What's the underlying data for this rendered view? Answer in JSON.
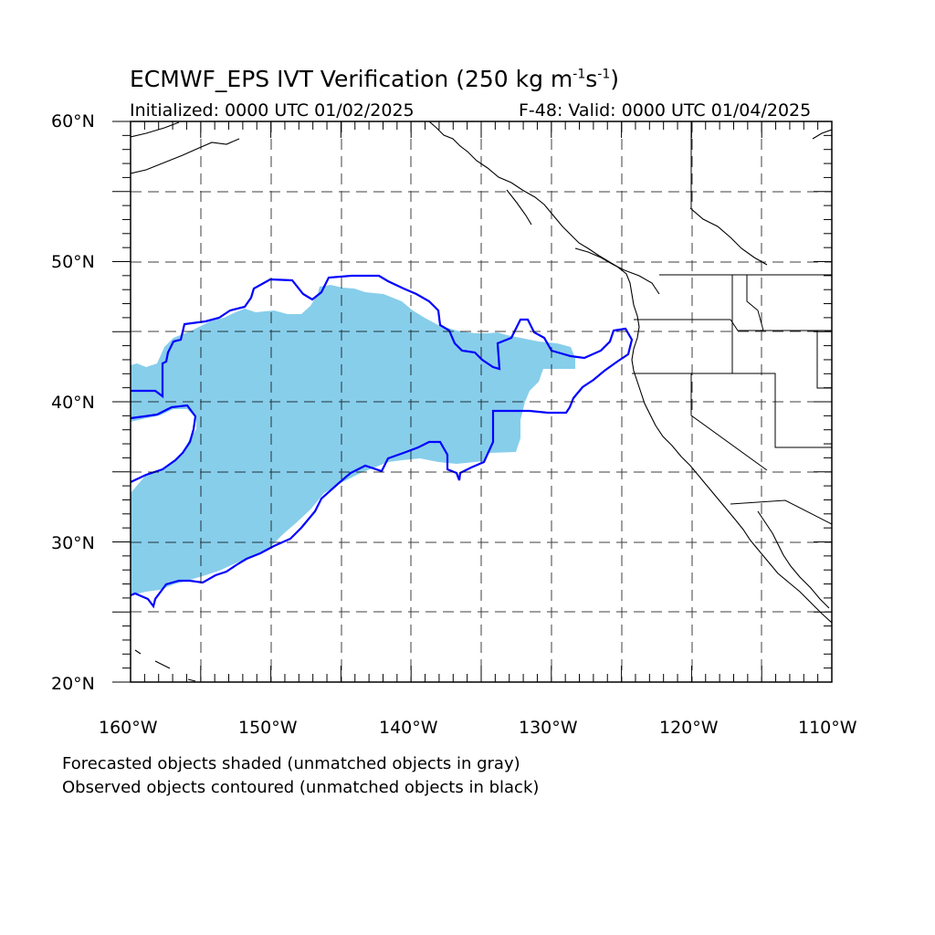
{
  "title": {
    "prefix": "ECMWF_EPS IVT Verification (250 kg m",
    "exp1": "-1",
    "mid": "s",
    "exp2": "-1",
    "suffix": ")"
  },
  "initialized": "Initialized: 0000 UTC 01/02/2025",
  "valid": "F-48: Valid: 0000 UTC 01/04/2025",
  "lat_labels": [
    "60°N",
    "50°N",
    "40°N",
    "30°N",
    "20°N"
  ],
  "lon_labels": [
    "160°W",
    "150°W",
    "140°W",
    "130°W",
    "120°W",
    "110°W"
  ],
  "caption_lines": [
    "Forecasted objects shaded (unmatched objects in gray)",
    "Observed objects contoured (unmatched objects in black)"
  ],
  "map_extent": {
    "lon_min": -160,
    "lon_max": -110,
    "lat_min": 20,
    "lat_max": 60
  },
  "colors": {
    "forecast_fill": "#87ceeb",
    "observed_contour": "#0000ff",
    "grid": "#000000"
  }
}
